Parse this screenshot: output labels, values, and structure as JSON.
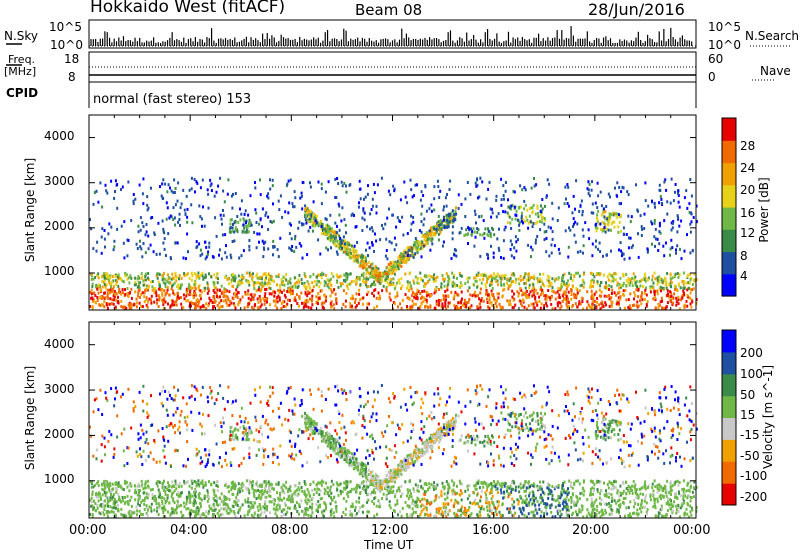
{
  "header": {
    "title": "Hokkaido West (fitACF)",
    "beam": "Beam 08",
    "date": "28/Jun/2016"
  },
  "summary": {
    "nsky_label": "N.Sky",
    "nsky_ticks": [
      "10^5",
      "10^0"
    ],
    "nsearch_label": "N.Search",
    "nsearch_ticks": [
      "10^5",
      "10^0"
    ],
    "freq_label_line1": "Freq.",
    "freq_label_line2": "[MHz]",
    "freq_ticks": [
      "18",
      "8"
    ],
    "nave_label": "Nave",
    "nave_ticks": [
      "60",
      "0"
    ],
    "cpid_label": "CPID",
    "cpid_text": "normal (fast stereo) 153"
  },
  "colors": {
    "power_scale": [
      "#0000ff",
      "#1e4fa0",
      "#3a8a4a",
      "#6fb846",
      "#e6d219",
      "#f0a000",
      "#f06a00",
      "#e60000"
    ],
    "velocity_scale": [
      "#e60000",
      "#f06a00",
      "#f0a000",
      "#c8c8c8",
      "#6fb846",
      "#3a8a4a",
      "#1e4fa0",
      "#0000ff"
    ]
  },
  "chart_data": [
    {
      "type": "heatmap",
      "title": "",
      "xlabel": "Time UT",
      "ylabel": "Slant Range [km]",
      "x_ticks": [
        "00:00",
        "04:00",
        "08:00",
        "12:00",
        "16:00",
        "20:00",
        "00:00"
      ],
      "y_ticks": [
        "1000",
        "2000",
        "3000",
        "4000"
      ],
      "ylim": [
        180,
        4500
      ],
      "colorbar": {
        "label": "Power [dB]",
        "ticks": [
          "4",
          "8",
          "12",
          "16",
          "20",
          "24",
          "28"
        ],
        "range": [
          0,
          30
        ]
      }
    },
    {
      "type": "heatmap",
      "title": "",
      "xlabel": "Time UT",
      "ylabel": "Slant Range [km]",
      "x_ticks": [
        "00:00",
        "04:00",
        "08:00",
        "12:00",
        "16:00",
        "20:00",
        "00:00"
      ],
      "y_ticks": [
        "1000",
        "2000",
        "3000",
        "4000"
      ],
      "ylim": [
        180,
        4500
      ],
      "colorbar": {
        "label": "Velocity [m s^-1]",
        "ticks": [
          "200",
          "100",
          "50",
          "15",
          "-15",
          "-50",
          "-100",
          "-200"
        ],
        "range": [
          -250,
          250
        ]
      }
    }
  ]
}
